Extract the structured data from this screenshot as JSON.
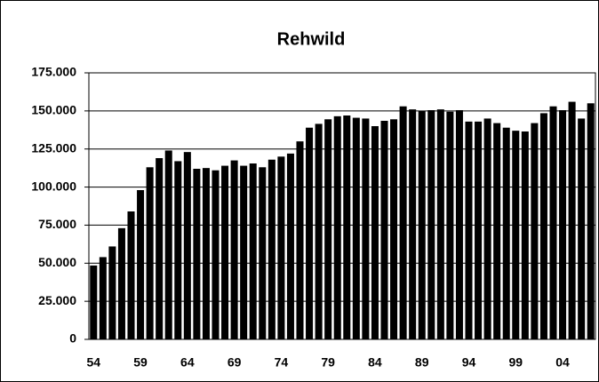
{
  "chart_data": {
    "type": "bar",
    "title": "Rehwild",
    "categories": [
      "54",
      null,
      null,
      null,
      null,
      "59",
      null,
      null,
      null,
      null,
      "64",
      null,
      null,
      null,
      null,
      "69",
      null,
      null,
      null,
      null,
      "74",
      null,
      null,
      null,
      null,
      "79",
      null,
      null,
      null,
      null,
      "84",
      null,
      null,
      null,
      null,
      "89",
      null,
      null,
      null,
      null,
      "94",
      null,
      null,
      null,
      null,
      "99",
      null,
      null,
      null,
      null,
      "04",
      null,
      null,
      null
    ],
    "values": [
      48500,
      54000,
      61000,
      73000,
      84000,
      98000,
      113000,
      119000,
      124000,
      117000,
      123000,
      112000,
      112500,
      111000,
      114000,
      117500,
      114000,
      115500,
      113000,
      118000,
      120000,
      122000,
      130000,
      139000,
      141500,
      144500,
      146500,
      147000,
      145500,
      145000,
      140000,
      143500,
      144500,
      153000,
      151000,
      150000,
      150500,
      151000,
      149500,
      150500,
      143000,
      143000,
      145000,
      142000,
      139000,
      137000,
      136500,
      142000,
      148500,
      153000,
      150500,
      156000,
      145000,
      155000
    ],
    "color": "#000000",
    "ylim": [
      0,
      175000
    ],
    "yticks": [
      0,
      {
        "value": 25000,
        "label": "25.000"
      },
      {
        "value": 50000,
        "label": "50.000"
      },
      {
        "value": 75000,
        "label": "75.000"
      },
      {
        "value": 100000,
        "label": "100.000"
      },
      {
        "value": 125000,
        "label": "125.000"
      },
      {
        "value": 150000,
        "label": "150.000"
      },
      {
        "value": 175000,
        "label": "175.000"
      }
    ],
    "grid": true
  }
}
